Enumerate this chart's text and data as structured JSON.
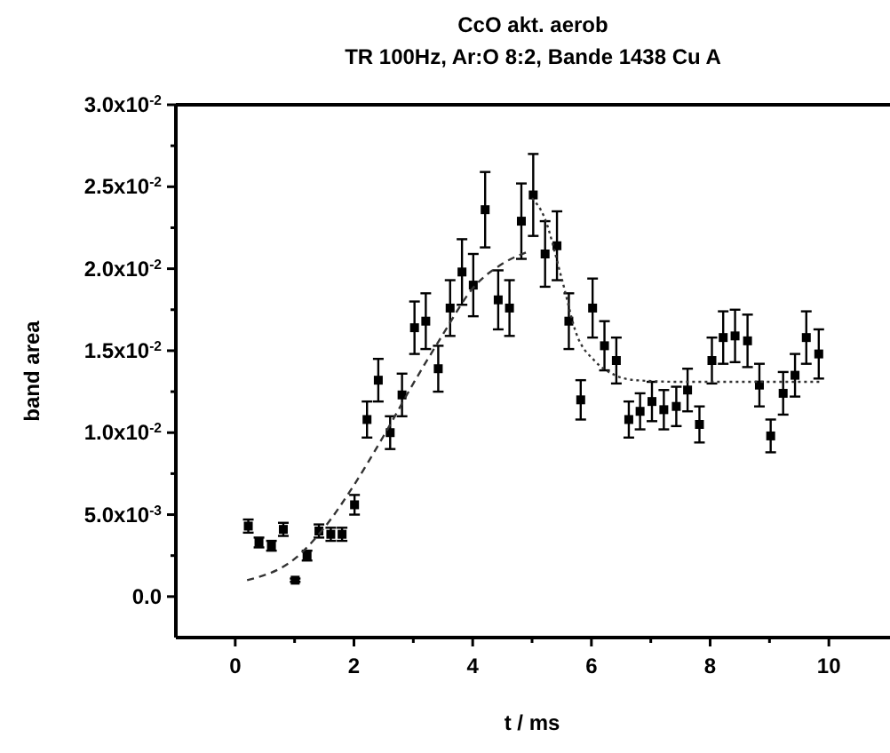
{
  "chart_data": {
    "type": "scatter",
    "title": "CcO akt. aerob",
    "subtitle": "TR 100Hz, Ar:O 8:2, Bande 1438 Cu A",
    "xlabel": "t / ms",
    "ylabel": "band area",
    "xlim": [
      -1,
      11
    ],
    "xticks": [
      0,
      {
        "value": 1,
        "label": null
      },
      2,
      {
        "value": 3,
        "label": null
      },
      4,
      {
        "value": 5,
        "label": null
      },
      6,
      {
        "value": 7,
        "label": null
      },
      8,
      {
        "value": 9,
        "label": null
      },
      10
    ],
    "ylim": [
      -0.0025,
      0.03
    ],
    "yticks": [
      {
        "value": 0,
        "label": "0.0"
      },
      {
        "value": 0.0025,
        "label": null
      },
      {
        "value": 0.005,
        "label": "5.0x10$^{-3}$"
      },
      {
        "value": 0.0075,
        "label": null
      },
      {
        "value": 0.01,
        "label": "1.0x10$^{-2}$"
      },
      {
        "value": 0.0125,
        "label": null
      },
      {
        "value": 0.015,
        "label": "1.5x10$^{-2}$"
      },
      {
        "value": 0.0175,
        "label": null
      },
      {
        "value": 0.02,
        "label": "2.0x10$^{-2}$"
      },
      {
        "value": 0.0225,
        "label": null
      },
      {
        "value": 0.025,
        "label": "2.5x10$^{-2}$"
      },
      {
        "value": 0.0275,
        "label": null
      },
      {
        "value": 0.03,
        "label": "3.0x10$^{-2}$"
      }
    ],
    "grid": false,
    "marker": "square",
    "series": [
      {
        "color": "#000000",
        "x": [
          0.22,
          0.4,
          0.61,
          0.81,
          1.01,
          1.21,
          1.41,
          1.61,
          1.8,
          2.01,
          2.22,
          2.41,
          2.61,
          2.81,
          3.02,
          3.21,
          3.42,
          3.62,
          3.82,
          4.01,
          4.21,
          4.43,
          4.62,
          4.82,
          5.02,
          5.22,
          5.42,
          5.62,
          5.82,
          6.02,
          6.22,
          6.42,
          6.63,
          6.82,
          7.02,
          7.22,
          7.43,
          7.62,
          7.82,
          8.03,
          8.22,
          8.42,
          8.63,
          8.83,
          9.02,
          9.23,
          9.43,
          9.62,
          9.83
        ],
        "values": [
          0.0043,
          0.0033,
          0.0031,
          0.0041,
          0.001,
          0.0025,
          0.004,
          0.0038,
          0.0038,
          0.0056,
          0.0108,
          0.0132,
          0.01,
          0.0123,
          0.0164,
          0.0168,
          0.0139,
          0.0176,
          0.0198,
          0.019,
          0.0236,
          0.0181,
          0.0176,
          0.0229,
          0.0245,
          0.0209,
          0.0214,
          0.0168,
          0.012,
          0.0176,
          0.0153,
          0.0144,
          0.0108,
          0.0113,
          0.0119,
          0.0114,
          0.0116,
          0.0126,
          0.0105,
          0.0144,
          0.0158,
          0.0159,
          0.0156,
          0.0129,
          0.0098,
          0.0124,
          0.0135,
          0.0158,
          0.0148
        ],
        "errors": [
          0.0004,
          0.0003,
          0.0003,
          0.0004,
          0.0001,
          0.0003,
          0.0004,
          0.0004,
          0.0004,
          0.0006,
          0.0011,
          0.0013,
          0.001,
          0.0013,
          0.0016,
          0.0017,
          0.0014,
          0.0017,
          0.002,
          0.0019,
          0.0023,
          0.0018,
          0.0017,
          0.0023,
          0.0025,
          0.002,
          0.0021,
          0.0017,
          0.0012,
          0.0018,
          0.0015,
          0.0014,
          0.0011,
          0.0011,
          0.0012,
          0.0012,
          0.0012,
          0.0013,
          0.0011,
          0.0014,
          0.0016,
          0.0016,
          0.0016,
          0.0013,
          0.001,
          0.0013,
          0.0013,
          0.0016,
          0.0015
        ]
      },
      {
        "type": "line",
        "color": "#333333",
        "line_style": "dashed",
        "marker": "none",
        "x": [
          0.2,
          1.0,
          1.5,
          2.0,
          2.5,
          3.0,
          3.5,
          4.0,
          4.5,
          4.9
        ],
        "values": [
          0.001,
          0.0023,
          0.0042,
          0.0068,
          0.0098,
          0.013,
          0.016,
          0.0188,
          0.0203,
          0.021
        ]
      },
      {
        "type": "line",
        "color": "#333333",
        "line_style": "dotted",
        "marker": "none",
        "x": [
          5.0,
          5.2,
          5.5,
          5.75,
          6.05,
          6.4,
          6.75,
          7.5,
          8.5,
          9.85
        ],
        "values": [
          0.0243,
          0.0232,
          0.0194,
          0.016,
          0.0144,
          0.0135,
          0.0132,
          0.0131,
          0.0131,
          0.0131
        ]
      }
    ]
  }
}
